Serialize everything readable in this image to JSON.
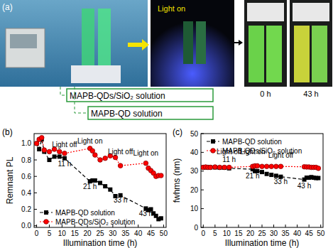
{
  "panel_a": {
    "label": "(a)",
    "photo_caption": "Light on",
    "times": [
      "0 h",
      "43 h"
    ],
    "boxes": [
      "MAPB-QDs/SiO₂ solution",
      "MAPB-QD solution"
    ]
  },
  "chart_data": [
    {
      "type": "line",
      "panel_label": "(b)",
      "x_label": "Illumination time (h)",
      "y_label": "Remnant PL",
      "x": [
        0,
        1,
        2,
        3,
        5,
        7,
        9,
        11,
        21,
        22,
        23,
        25,
        27,
        29,
        31,
        33,
        43,
        44,
        45,
        46,
        47,
        48,
        49
      ],
      "series": [
        {
          "name": "MAPB-QD solution",
          "color": "#000000",
          "marker": "square",
          "line_style": "dashed",
          "values": [
            1.0,
            0.93,
            1.05,
            0.9,
            0.8,
            0.84,
            0.84,
            0.82,
            0.54,
            0.55,
            0.55,
            0.52,
            0.48,
            0.44,
            0.36,
            0.37,
            0.21,
            0.19,
            0.2,
            0.15,
            0.12,
            0.08,
            0.09
          ]
        },
        {
          "name": "MAPB-QDs/SiO₂ solution",
          "color": "#ff0000",
          "marker": "circle",
          "line_style": "dotted",
          "values": [
            1.0,
            1.05,
            1.07,
            0.92,
            0.9,
            0.93,
            0.9,
            0.88,
            0.94,
            0.91,
            0.86,
            0.8,
            0.82,
            0.85,
            0.83,
            0.73,
            0.76,
            0.7,
            0.67,
            0.64,
            0.6,
            0.61,
            0.61
          ]
        }
      ],
      "xlim": [
        -1,
        51
      ],
      "xticks": [
        0,
        5,
        10,
        15,
        20,
        25,
        30,
        35,
        40,
        45,
        50
      ],
      "ylim": [
        -0.02,
        1.12
      ],
      "yticks": [
        {
          "value": 0,
          "label": "0.0"
        },
        0.2,
        0.4,
        0.6,
        0.8,
        {
          "value": 1,
          "label": "1.0"
        }
      ],
      "legend": "lower left",
      "annotations": [
        {
          "text": "Light off",
          "x": 11,
          "y": 0.96
        },
        {
          "text": "11 h",
          "x": 11,
          "y": 0.72
        },
        {
          "text": "Light on",
          "x": 21,
          "y": 1.0
        },
        {
          "text": "21 h",
          "x": 21,
          "y": 0.45
        },
        {
          "text": "Light off",
          "x": 33,
          "y": 0.87
        },
        {
          "text": "33 h",
          "x": 33,
          "y": 0.28
        },
        {
          "text": "Light on",
          "x": 43,
          "y": 0.85
        },
        {
          "text": "43 h",
          "x": 43,
          "y": 0.12
        }
      ]
    },
    {
      "type": "line",
      "panel_label": "(c)",
      "x_label": "Illumination time (h)",
      "y_label": "fwhms (nm)",
      "x": [
        0,
        1,
        2,
        3,
        5,
        7,
        9,
        11,
        21,
        22,
        23,
        25,
        27,
        29,
        31,
        33,
        43,
        44,
        45,
        46,
        47,
        48,
        49
      ],
      "series": [
        {
          "name": "MAPB-QD solution",
          "color": "#000000",
          "marker": "square",
          "line_style": "dashed",
          "values": [
            32,
            32,
            32,
            32,
            32,
            31.8,
            31.8,
            31.5,
            31,
            30,
            30,
            29.5,
            28.5,
            28,
            27.5,
            27,
            25.5,
            26.5,
            26.5,
            26.8,
            26.5,
            26.3,
            26.3
          ]
        },
        {
          "name": "MAPB-QDs/SiO₂ solution",
          "color": "#ff0000",
          "marker": "circle",
          "line_style": "dotted",
          "values": [
            32,
            32.2,
            32,
            32,
            32.2,
            32,
            32,
            32,
            32.5,
            32.8,
            32.8,
            32.5,
            32.5,
            32.5,
            32.5,
            32.5,
            32.3,
            32.2,
            32.2,
            32,
            32,
            32,
            31.5
          ]
        }
      ],
      "xlim": [
        -1,
        51
      ],
      "xticks": [
        0,
        5,
        10,
        15,
        20,
        25,
        30,
        35,
        40,
        45,
        50
      ],
      "ylim": [
        0,
        50
      ],
      "yticks": [
        0,
        10,
        20,
        30,
        40,
        50
      ],
      "legend": "upper left",
      "annotations": [
        {
          "text": "Light off",
          "x": 11,
          "y": 39
        },
        {
          "text": "11 h",
          "x": 11,
          "y": 35
        },
        {
          "text": "Light on",
          "x": 21,
          "y": 39
        },
        {
          "text": "21 h",
          "x": 21,
          "y": 26
        },
        {
          "text": "Light off",
          "x": 33,
          "y": 37
        },
        {
          "text": "33 h",
          "x": 33,
          "y": 23
        },
        {
          "text": "43 h",
          "x": 43,
          "y": 21
        }
      ]
    }
  ]
}
